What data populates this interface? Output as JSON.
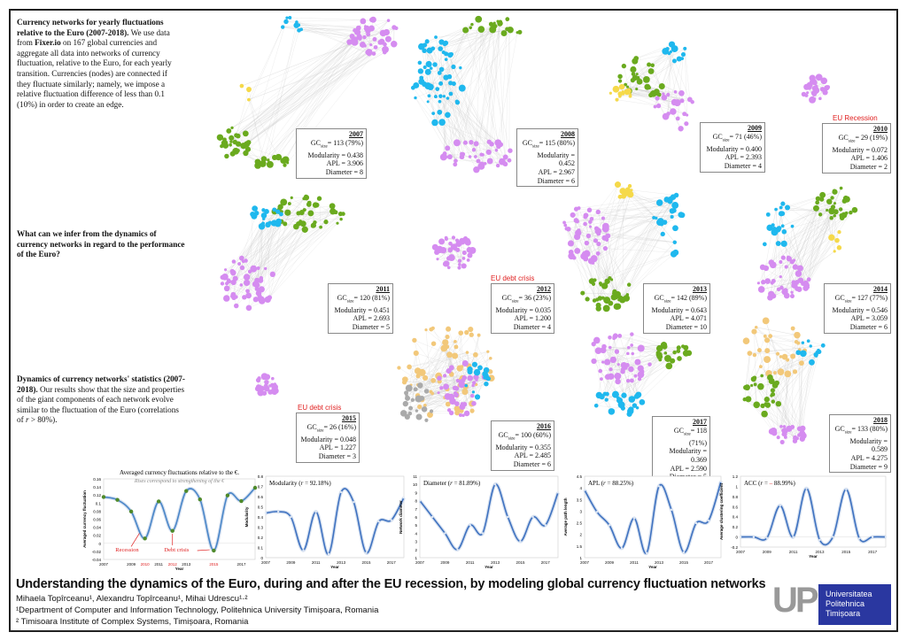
{
  "intro": {
    "heading": "Currency networks for yearly fluctuations relative to the Euro (2007-2018).",
    "body1": " We use data from ",
    "source": "Fixer.io",
    "body2": " on 167 global currencies and aggregate all data into networks of currency fluctuation, relative to the Euro, for each yearly transition. Currencies (nodes) are connected if they fluctuate similarly; namely, we impose a relative fluctuation difference of less than 0.1 (10%) in order to create an edge."
  },
  "question": {
    "heading": "What can we infer from the dynamics of currency networks in regard to the performance of the Euro?"
  },
  "dynamics": {
    "heading": "Dynamics of currency networks' statistics (2007-2018).",
    "body1": " Our results show that the size and properties of the giant components of each network evolve similar to the fluctuation of the Euro (correlations of ",
    "r": "r",
    "body2": " > 80%)."
  },
  "node_colors": {
    "purple": "#d58cf0",
    "blue": "#1fb8ee",
    "green": "#6aaa1e",
    "yellow": "#f5d94a",
    "orange": "#f2c87a",
    "gray": "#aaaaaa"
  },
  "networks": [
    {
      "year": "2007",
      "gc": "GC",
      "sub": "size",
      "gcv": "= 113 (79%)",
      "mod": "Modularity = 0.438",
      "apl": "APL = 3.906",
      "dia": "Diameter = 8",
      "label": ""
    },
    {
      "year": "2008",
      "gc": "GC",
      "sub": "size",
      "gcv": "= 115 (80%)",
      "mod": "Modularity = 0.452",
      "apl": "APL = 2.967",
      "dia": "Diameter = 6",
      "label": ""
    },
    {
      "year": "2009",
      "gc": "GC",
      "sub": "size",
      "gcv": "= 71 (46%)",
      "mod": "Modularity = 0.400",
      "apl": "APL = 2.393",
      "dia": "Diameter = 4",
      "label": ""
    },
    {
      "year": "2010",
      "gc": "GC",
      "sub": "size",
      "gcv": "= 29 (19%)",
      "mod": "Modularity = 0.072",
      "apl": "APL = 1.406",
      "dia": "Diameter = 2",
      "label": "EU Recession"
    },
    {
      "year": "2011",
      "gc": "GC",
      "sub": "size",
      "gcv": "= 120 (81%)",
      "mod": "Modularity = 0.451",
      "apl": "APL = 2.693",
      "dia": "Diameter = 5",
      "label": ""
    },
    {
      "year": "2012",
      "gc": "GC",
      "sub": "size",
      "gcv": "= 36 (23%)",
      "mod": "Modularity = 0.035",
      "apl": "APL = 1.200",
      "dia": "Diameter = 4",
      "label": "EU debt crisis"
    },
    {
      "year": "2013",
      "gc": "GC",
      "sub": "size",
      "gcv": "= 142 (89%)",
      "mod": "Modularity = 0.643",
      "apl": "APL = 4.071",
      "dia": "Diameter = 10",
      "label": ""
    },
    {
      "year": "2014",
      "gc": "GC",
      "sub": "size",
      "gcv": "= 127 (77%)",
      "mod": "Modularity = 0.546",
      "apl": "APL = 3.059",
      "dia": "Diameter = 6",
      "label": ""
    },
    {
      "year": "2015",
      "gc": "GC",
      "sub": "size",
      "gcv": "= 26 (16%)",
      "mod": "Modularity = 0.048",
      "apl": "APL = 1.227",
      "dia": "Diameter = 3",
      "label": "EU debt crisis"
    },
    {
      "year": "2016",
      "gc": "GC",
      "sub": "size",
      "gcv": "= 100 (60%)",
      "mod": "Modularity = 0.355",
      "apl": "APL = 2.485",
      "dia": "Diameter = 6",
      "label": ""
    },
    {
      "year": "2017",
      "gc": "GC",
      "sub": "size",
      "gcv": "= 118 (71%)",
      "mod": "Modularity = 0.369",
      "apl": "APL = 2.590",
      "dia": "Diameter = 5",
      "label": ""
    },
    {
      "year": "2018",
      "gc": "GC",
      "sub": "size",
      "gcv": "= 133 (80%)",
      "mod": "Modularity = 0.589",
      "apl": "APL = 4.275",
      "dia": "Diameter = 9",
      "label": ""
    }
  ],
  "chart_data": [
    {
      "type": "line",
      "title": "Averaged currency fluctuations relative to the €.",
      "subtitle": "Rises correspond to strengthening of the €",
      "xlabel": "Year",
      "ylabel": "Averaged currency fluctuation",
      "x": [
        2007,
        2008,
        2009,
        2010,
        2011,
        2012,
        2013,
        2014,
        2015,
        2016,
        2017,
        2018
      ],
      "values": [
        0.115,
        0.108,
        0.079,
        0.012,
        0.104,
        0.031,
        0.13,
        0.109,
        -0.018,
        0.119,
        0.105,
        0.138
      ],
      "ylim": [
        -0.04,
        0.16
      ],
      "yticks": [
        "0.16",
        "0.14",
        "0.12",
        "0.1",
        "0.08",
        "0.06",
        "0.04",
        "0.02",
        "0",
        "-0.02",
        "-0.04"
      ],
      "xticks": [
        "2007",
        "2009",
        "2010",
        "2011",
        "2012",
        "2013",
        "2015",
        "2017"
      ],
      "highlight_ticks": [
        "2010",
        "2012",
        "2015"
      ],
      "annotations": [
        "Recession",
        "Debt crisis"
      ],
      "line_color": "#4a86c8",
      "marker_color": "#4f8a2a",
      "highlight_color": "#e02020"
    },
    {
      "type": "line",
      "title": "Modularity (",
      "r_label": "r",
      "title_end": " = 92.18%)",
      "xlabel": "Year",
      "ylabel": "Modularity",
      "x": [
        2007,
        2008,
        2009,
        2010,
        2011,
        2012,
        2013,
        2014,
        2015,
        2016,
        2017,
        2018
      ],
      "values": [
        0.438,
        0.452,
        0.4,
        0.072,
        0.451,
        0.035,
        0.643,
        0.546,
        0.048,
        0.355,
        0.369,
        0.589
      ],
      "ylim": [
        0,
        0.8
      ],
      "yticks": [
        "0.8",
        "0.7",
        "0.6",
        "0.5",
        "0.4",
        "0.3",
        "0.2",
        "0.1",
        "0"
      ],
      "xticks": [
        "2007",
        "2009",
        "2011",
        "2013",
        "2015",
        "2017"
      ]
    },
    {
      "type": "line",
      "title": "Diameter (",
      "r_label": "r",
      "title_end": " = 81.89%)",
      "xlabel": "Year",
      "ylabel": "Network diameter",
      "x": [
        2007,
        2008,
        2009,
        2010,
        2011,
        2012,
        2013,
        2014,
        2015,
        2016,
        2017,
        2018
      ],
      "values": [
        8,
        6,
        4,
        2,
        5,
        4,
        10,
        6,
        3,
        6,
        5,
        9
      ],
      "ylim": [
        1,
        11
      ],
      "yticks": [
        "11",
        "10",
        "9",
        "8",
        "7",
        "6",
        "5",
        "4",
        "3",
        "2",
        "1"
      ],
      "xticks": [
        "2007",
        "2009",
        "2011",
        "2013",
        "2015",
        "2017"
      ]
    },
    {
      "type": "line",
      "title": "APL (",
      "r_label": "r",
      "title_end": " = 88.25%)",
      "xlabel": "Year",
      "ylabel": "Average path length",
      "x": [
        2007,
        2008,
        2009,
        2010,
        2011,
        2012,
        2013,
        2014,
        2015,
        2016,
        2017,
        2018
      ],
      "values": [
        3.906,
        2.967,
        2.393,
        1.406,
        2.693,
        1.2,
        4.071,
        3.059,
        1.227,
        2.485,
        2.59,
        4.275
      ],
      "ylim": [
        1,
        4.5
      ],
      "yticks": [
        "4.5",
        "4",
        "3.5",
        "3",
        "2.5",
        "2",
        "1.5",
        "1"
      ],
      "xticks": [
        "2007",
        "2009",
        "2011",
        "2013",
        "2015",
        "2017"
      ]
    },
    {
      "type": "line",
      "title": "ACC (",
      "r_label": "r",
      "title_mid": " = ",
      "title_neg": "–",
      "title_end": " 88.99%)",
      "xlabel": "Year",
      "ylabel": "Average clustering coefficient",
      "x": [
        2007,
        2008,
        2009,
        2010,
        2011,
        2012,
        2013,
        2014,
        2015,
        2016,
        2017,
        2018
      ],
      "values": [
        0,
        0,
        -0.02,
        0.62,
        0,
        0.96,
        -0.06,
        0,
        0.94,
        -0.03,
        0,
        0
      ],
      "ylim": [
        -0.2,
        1.2
      ],
      "yticks": [
        "1.2",
        "1",
        "0.8",
        "0.6",
        "0.4",
        "0.2",
        "0",
        "-0.2"
      ],
      "xticks": [
        "2007",
        "2009",
        "2011",
        "2013",
        "2015",
        "2017"
      ]
    }
  ],
  "footer": {
    "title": "Understanding the dynamics of the Euro, during and after the EU recession, by modeling global currency fluctuation networks",
    "authors": "Mihaela Topîrceanu¹, Alexandru Topîrceanu¹, Mihai Udrescu¹·²",
    "aff1": "¹Department of Computer and Information Technology, Politehnica University Timișoara, Romania",
    "aff2": "² Timisoara Institute of Complex Systems, Timișoara, Romania",
    "logo_mark": "UP",
    "logo_lines": [
      "Universitatea",
      "Politehnica",
      "Timișoara"
    ]
  }
}
